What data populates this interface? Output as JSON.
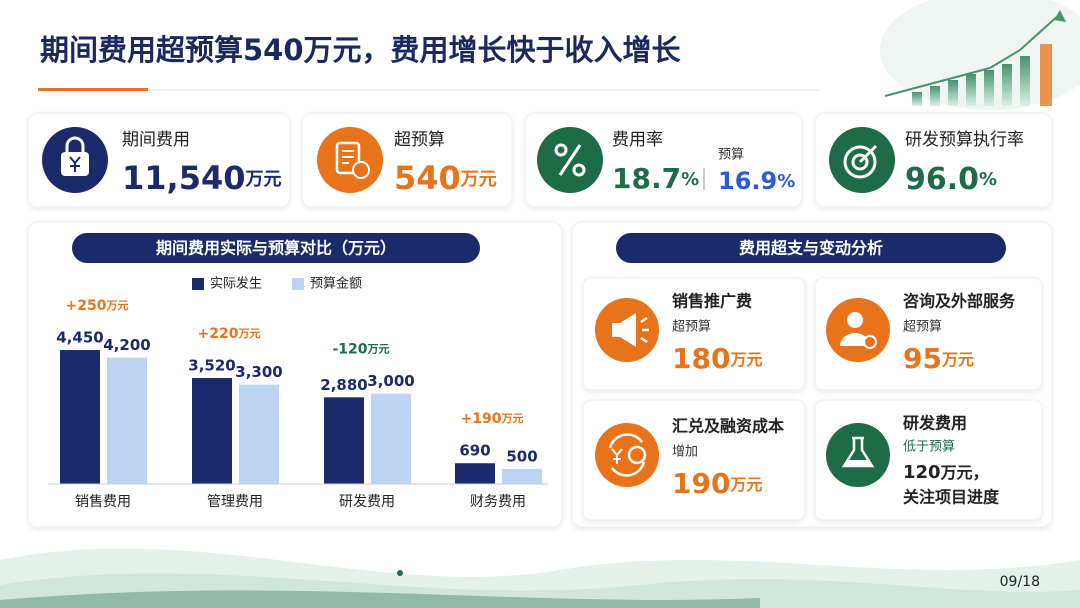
{
  "header": {
    "title": "期间费用超预算540万元，费用增长快于收入增长"
  },
  "kpis": [
    {
      "label": "期间费用",
      "value": "11,540",
      "unit": "万元"
    },
    {
      "label": "超预算",
      "value": "540",
      "unit": "万元"
    },
    {
      "label": "费用率",
      "value": "18.7",
      "unit": "%",
      "budget_label": "预算",
      "budget_value": "16.9",
      "budget_unit": "%"
    },
    {
      "label": "研发预算执行率",
      "value": "96.0",
      "unit": "%"
    }
  ],
  "chart_data": {
    "type": "bar",
    "title": "期间费用实际与预算对比（万元）",
    "categories": [
      "销售费用",
      "管理费用",
      "研发费用",
      "财务费用"
    ],
    "series": [
      {
        "name": "实际发生",
        "color": "#1b2a6b",
        "values": [
          4450,
          3520,
          2880,
          690
        ],
        "value_labels": [
          "4,450",
          "3,520",
          "2,880",
          "690"
        ]
      },
      {
        "name": "预算金额",
        "color": "#bcd3f2",
        "values": [
          4200,
          3300,
          3000,
          500
        ],
        "value_labels": [
          "4,200",
          "3,300",
          "3,000",
          "500"
        ]
      }
    ],
    "annotations": [
      {
        "text": "+250",
        "unit": "万元"
      },
      {
        "text": "+220",
        "unit": "万元"
      },
      {
        "text": "-120",
        "unit": "万元"
      },
      {
        "text": "+190",
        "unit": "万元"
      }
    ]
  },
  "analysis": {
    "title": "费用超支与变动分析",
    "cards": [
      {
        "name": "销售推广费",
        "sub": "超预算",
        "value": "180",
        "unit": "万元"
      },
      {
        "name": "咨询及外部服务",
        "sub": "超预算",
        "value": "95",
        "unit": "万元"
      },
      {
        "name": "汇兑及融资成本",
        "sub": "增加",
        "value": "190",
        "unit": "万元"
      },
      {
        "name": "研发费用",
        "sub": "低于预算",
        "value": "120",
        "unit": "万元，",
        "note": "关注项目进度"
      }
    ]
  },
  "footer": {
    "page": "09/18"
  }
}
